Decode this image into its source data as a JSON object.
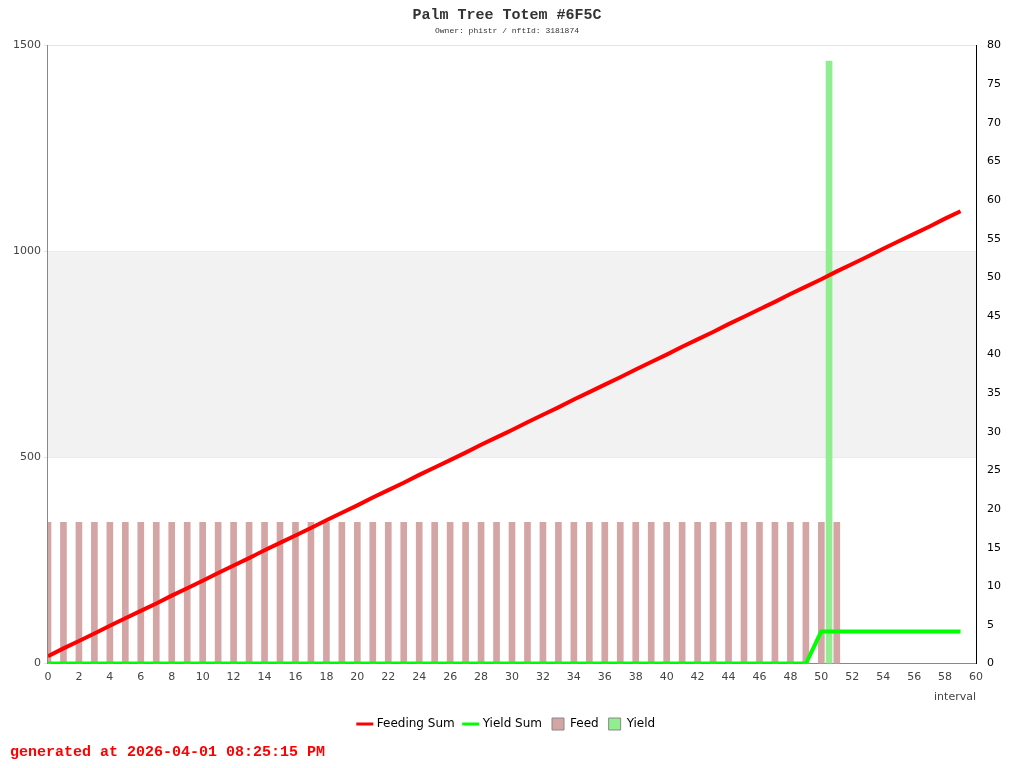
{
  "chart_data": {
    "type": "bar",
    "title": "Palm Tree Totem #6F5C",
    "subtitle": "Owner: phistr / nftId: 3181874",
    "xlabel": "interval",
    "xlim": [
      0,
      60
    ],
    "xticks": [
      0,
      2,
      4,
      6,
      8,
      10,
      12,
      14,
      16,
      18,
      20,
      22,
      24,
      26,
      28,
      30,
      32,
      34,
      36,
      38,
      40,
      42,
      44,
      46,
      48,
      50,
      52,
      54,
      56,
      58,
      60
    ],
    "ylim": [
      0,
      1500
    ],
    "yticks": [
      0,
      500,
      1000,
      1500
    ],
    "y2lim": [
      0,
      80
    ],
    "y2ticks": [
      0,
      5,
      10,
      15,
      20,
      25,
      30,
      35,
      40,
      45,
      50,
      55,
      60,
      65,
      70,
      75,
      80
    ],
    "grid": "y",
    "legend": "bottom",
    "marker": "none",
    "bands": [
      {
        "axis": "y",
        "from": 500,
        "to": 1000,
        "color": "#f2f2f2"
      }
    ],
    "annotations": [
      "generated at 2026-04-01 08:25:15 PM"
    ],
    "series": [
      {
        "name": "Feeding Sum",
        "type": "line",
        "color": "#ff0000",
        "x": [
          0,
          1,
          2,
          3,
          4,
          5,
          6,
          7,
          8,
          9,
          10,
          11,
          12,
          13,
          14,
          15,
          16,
          17,
          18,
          19,
          20,
          21,
          22,
          23,
          24,
          25,
          26,
          27,
          28,
          29,
          30,
          31,
          32,
          33,
          34,
          35,
          36,
          37,
          38,
          39,
          40,
          41,
          42,
          43,
          44,
          45,
          46,
          47,
          48,
          49,
          50,
          51,
          52,
          53,
          54,
          55,
          56,
          57,
          58,
          59
        ],
        "values": [
          18,
          37,
          55,
          73,
          92,
          110,
          128,
          146,
          165,
          183,
          201,
          220,
          238,
          256,
          275,
          293,
          311,
          329,
          348,
          366,
          384,
          403,
          421,
          439,
          458,
          476,
          494,
          512,
          531,
          549,
          567,
          586,
          604,
          622,
          641,
          659,
          677,
          695,
          714,
          732,
          750,
          769,
          787,
          805,
          824,
          842,
          860,
          878,
          897,
          915,
          933,
          952,
          970,
          988,
          1007,
          1025,
          1043,
          1061,
          1080,
          1098
        ]
      },
      {
        "name": "Yield Sum",
        "type": "line",
        "color": "#00ff00",
        "x": [
          0,
          1,
          2,
          3,
          4,
          5,
          6,
          7,
          8,
          9,
          10,
          11,
          12,
          13,
          14,
          15,
          16,
          17,
          18,
          19,
          20,
          21,
          22,
          23,
          24,
          25,
          26,
          27,
          28,
          29,
          30,
          31,
          32,
          33,
          34,
          35,
          36,
          37,
          38,
          39,
          40,
          41,
          42,
          43,
          44,
          45,
          46,
          47,
          48,
          49,
          50,
          51,
          52,
          53,
          54,
          55,
          56,
          57,
          58,
          59
        ],
        "values": [
          0,
          0,
          0,
          0,
          0,
          0,
          0,
          0,
          0,
          0,
          0,
          0,
          0,
          0,
          0,
          0,
          0,
          0,
          0,
          0,
          0,
          0,
          0,
          0,
          0,
          0,
          0,
          0,
          0,
          0,
          0,
          0,
          0,
          0,
          0,
          0,
          0,
          0,
          0,
          0,
          0,
          0,
          0,
          0,
          0,
          0,
          0,
          0,
          0,
          0,
          78,
          78,
          78,
          78,
          78,
          78,
          78,
          78,
          78,
          78
        ]
      },
      {
        "name": "Feed",
        "axis": "y2",
        "color": "#d4a5a5",
        "x": [
          0,
          1,
          2,
          3,
          4,
          5,
          6,
          7,
          8,
          9,
          10,
          11,
          12,
          13,
          14,
          15,
          16,
          17,
          18,
          19,
          20,
          21,
          22,
          23,
          24,
          25,
          26,
          27,
          28,
          29,
          30,
          31,
          32,
          33,
          34,
          35,
          36,
          37,
          38,
          39,
          40,
          41,
          42,
          43,
          44,
          45,
          46,
          47,
          48,
          49,
          50,
          51
        ],
        "values": [
          18.3,
          18.3,
          18.3,
          18.3,
          18.3,
          18.3,
          18.3,
          18.3,
          18.3,
          18.3,
          18.3,
          18.3,
          18.3,
          18.3,
          18.3,
          18.3,
          18.3,
          18.3,
          18.3,
          18.3,
          18.3,
          18.3,
          18.3,
          18.3,
          18.3,
          18.3,
          18.3,
          18.3,
          18.3,
          18.3,
          18.3,
          18.3,
          18.3,
          18.3,
          18.3,
          18.3,
          18.3,
          18.3,
          18.3,
          18.3,
          18.3,
          18.3,
          18.3,
          18.3,
          18.3,
          18.3,
          18.3,
          18.3,
          18.3,
          18.3,
          18.3,
          18.3
        ]
      },
      {
        "name": "Yield",
        "axis": "y2",
        "color": "#90ee90",
        "x": [
          50.5
        ],
        "values": [
          78
        ]
      }
    ]
  }
}
